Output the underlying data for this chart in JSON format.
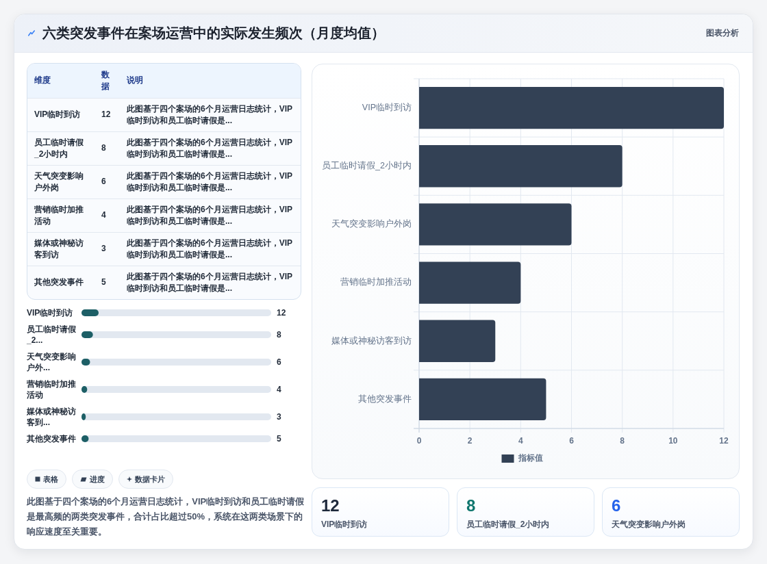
{
  "chart_data": [
    {
      "type": "other",
      "title": "六类突发事件在案场运营中的实际发生频次（月度均值）",
      "categories": [
        "VIP临时到访",
        "员工临时请假_2小时内",
        "天气突变影响户外岗",
        "营销临时加推活动",
        "媒体或神秘访客到访",
        "其他突发事件"
      ],
      "values": [
        12,
        8,
        6,
        4,
        3,
        5
      ],
      "data_labels": true,
      "annotations": [
        "图表分析",
        "维度",
        "数据",
        "说明",
        "此图基于四个案场的6个月运营日志统计，VIP临时到访和员工临时请假是...",
        "此图基于四个案场的6个月运营日志统计，VIP临时到访和员工临时请假是...",
        "此图基于四个案场的6个月运营日志统计，VIP临时到访和员工临时请假是...",
        "此图基于四个案场的6个月运营日志统计，VIP临时到访和员工临时请假是...",
        "此图基于四个案场的6个月运营日志统计，VIP临时到访和员工临时请假是...",
        "此图基于四个案场的6个月运营日志统计，VIP临时到访和员工临时请假是..."
      ]
    },
    {
      "type": "other",
      "categories": [
        "VIP临时到访",
        "员工临时请假_2...",
        "天气突变影响户外...",
        "营销临时加推活动",
        "媒体或神秘访客到...",
        "其他突发事件"
      ],
      "values": [
        12,
        8,
        6,
        4,
        3,
        5
      ],
      "data_labels": true,
      "annotations": [
        "表格",
        "进度",
        "数据卡片",
        "此图基于四个案场的6个月运营日志统计，VIP临时到访和员工临时请假是最高频的两类突发事件，合计占比超过50%，系统在这两类场景下的响应速度至关重要。"
      ]
    },
    {
      "type": "bar",
      "orientation": "horizontal",
      "categories": [
        "VIP临时到访",
        "员工临时请假_2小时内",
        "天气突变影响户外岗",
        "营销临时加推活动",
        "媒体或神秘访客到访",
        "其他突发事件"
      ],
      "series": [
        {
          "name": "指标值",
          "color": "#334155",
          "values": [
            12,
            8,
            6,
            4,
            3,
            5
          ]
        }
      ],
      "xlim": [
        0,
        12
      ],
      "xticks": [
        0,
        2,
        4,
        6,
        8,
        10,
        12
      ],
      "grid": true,
      "legend": "bottom"
    },
    {
      "type": "other",
      "categories": [
        "VIP临时到访",
        "员工临时请假_2小时内",
        "天气突变影响户外岗"
      ],
      "values": [
        12,
        8,
        6
      ],
      "data_labels": true
    }
  ]
}
